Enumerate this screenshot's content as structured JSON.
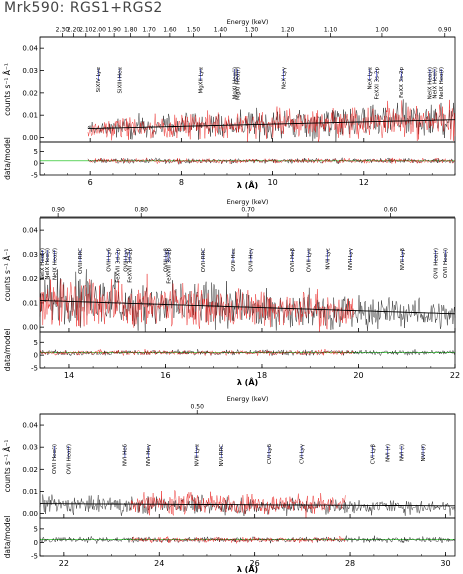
{
  "title": "Mrk590: RGS1+RGS2",
  "colors": {
    "black_series": "#000000",
    "red_series": "#e8110f",
    "model": "#000000",
    "ideal": "#00bb00",
    "lines": "#1f2bd6"
  },
  "chart_data": [
    {
      "type": "line",
      "panel": "top",
      "xlabel": "λ (Å)",
      "ylabel_upper": "counts s⁻¹ Å⁻¹",
      "ylabel_lower": "data/model",
      "top_axis_label": "Energy (keV)",
      "xlim": [
        4.9,
        14.0
      ],
      "ylim_upper": [
        -0.002,
        0.045
      ],
      "ylim_lower": [
        -5,
        9
      ],
      "x_ticks": [
        6,
        8,
        10,
        12
      ],
      "y_ticks_upper": [
        0.0,
        0.01,
        0.02,
        0.03,
        0.04
      ],
      "y_ticks_lower": [
        -5,
        0,
        5
      ],
      "energy_ticks": [
        "2.30",
        "2.20",
        "2.10",
        "2.00",
        "1.90",
        "1.80",
        "1.70",
        "1.60",
        "1.50",
        "1.40",
        "1.30",
        "1.20",
        "1.10",
        "1.00",
        "0.90"
      ],
      "series": [
        {
          "name": "RGS1",
          "color": "#000000",
          "x_start": 5.95,
          "x_end": 14.0,
          "level": [
            0.004,
            0.008
          ]
        },
        {
          "name": "RGS2",
          "color": "#e8110f",
          "x_start": 5.95,
          "x_end": 14.0,
          "level": [
            0.004,
            0.008
          ]
        }
      ],
      "line_labels": [
        {
          "x": 6.18,
          "text": "SiXIV Lyα"
        },
        {
          "x": 6.65,
          "text": "SiXIII Heα"
        },
        {
          "x": 8.42,
          "text": "MgXII Lyα"
        },
        {
          "x": 9.17,
          "text": "MgXI Heα(i)"
        },
        {
          "x": 9.23,
          "text": "MgXI Heα(r)"
        },
        {
          "x": 10.24,
          "text": "NeX Lyγ"
        },
        {
          "x": 12.13,
          "text": "NeX Lyα"
        },
        {
          "x": 12.28,
          "text": "FeXXI 3s-2p"
        },
        {
          "x": 12.82,
          "text": "FeXX 3s-2p"
        },
        {
          "x": 13.45,
          "text": "NeIX Heα(r)"
        },
        {
          "x": 13.55,
          "text": "NeIX Heα(i)"
        },
        {
          "x": 13.7,
          "text": "NeIX Heα(f)"
        }
      ]
    },
    {
      "type": "line",
      "panel": "middle",
      "xlabel": "λ (Å)",
      "ylabel_upper": "counts s⁻¹ Å⁻¹",
      "ylabel_lower": "data/model",
      "top_axis_label": "Energy (keV)",
      "xlim": [
        13.4,
        22.0
      ],
      "ylim_upper": [
        -0.002,
        0.045
      ],
      "ylim_lower": [
        -5,
        9
      ],
      "x_ticks": [
        14,
        16,
        18,
        20,
        22
      ],
      "y_ticks_upper": [
        0.0,
        0.01,
        0.02,
        0.03,
        0.04
      ],
      "y_ticks_lower": [
        -5,
        0,
        5
      ],
      "energy_ticks": [
        "0.90",
        "0.80",
        "0.70",
        "0.60"
      ],
      "series": [
        {
          "name": "RGS1",
          "color": "#000000",
          "x_start": 13.4,
          "x_end": 22.0,
          "level": [
            0.011,
            0.005
          ]
        },
        {
          "name": "RGS2",
          "color": "#e8110f",
          "x_start": 13.4,
          "x_end": 19.9,
          "level": [
            0.011,
            0.006
          ]
        }
      ],
      "line_labels": [
        {
          "x": 13.45,
          "text": "NeIX Heα(r)"
        },
        {
          "x": 13.55,
          "text": "NeIX Heα(i)"
        },
        {
          "x": 13.7,
          "text": "NeIX Heα(f)"
        },
        {
          "x": 14.23,
          "text": "OVIII RRC"
        },
        {
          "x": 14.82,
          "text": "OVIII Lyδ"
        },
        {
          "x": 15.01,
          "text": "FeXVII 3d-2p"
        },
        {
          "x": 15.18,
          "text": "OVIII Lyγ"
        },
        {
          "x": 15.26,
          "text": "FeXVII 3d-2p"
        },
        {
          "x": 16.01,
          "text": "OVIII Lyβ"
        },
        {
          "x": 16.07,
          "text": "FeXVIII 3s-2p"
        },
        {
          "x": 16.78,
          "text": "OVII RRC"
        },
        {
          "x": 17.4,
          "text": "OVII Heε"
        },
        {
          "x": 17.77,
          "text": "OVII Heγ"
        },
        {
          "x": 18.63,
          "text": "OVII Heβ"
        },
        {
          "x": 18.97,
          "text": "OVIII Lyα"
        },
        {
          "x": 19.36,
          "text": "NVII Lyε"
        },
        {
          "x": 19.83,
          "text": "NVII Lyγ"
        },
        {
          "x": 20.91,
          "text": "NVII Lyβ"
        },
        {
          "x": 21.6,
          "text": "OVII Heα(r)"
        },
        {
          "x": 21.8,
          "text": "OVII Heα(i)"
        }
      ]
    },
    {
      "type": "line",
      "panel": "bottom",
      "xlabel": "λ (Å)",
      "ylabel_upper": "counts s⁻¹ Å⁻¹",
      "ylabel_lower": "data/model",
      "top_axis_label": "Energy (keV)",
      "xlim": [
        21.5,
        30.2
      ],
      "ylim_upper": [
        -0.002,
        0.045
      ],
      "ylim_lower": [
        -5,
        9
      ],
      "x_ticks": [
        22,
        24,
        26,
        28,
        30
      ],
      "y_ticks_upper": [
        0.0,
        0.01,
        0.02,
        0.03,
        0.04
      ],
      "y_ticks_lower": [
        -5,
        0,
        5
      ],
      "energy_ticks": [
        "0.50"
      ],
      "series": [
        {
          "name": "RGS1",
          "color": "#000000",
          "x_start": 21.5,
          "x_end": 30.2,
          "level": [
            0.004,
            0.003
          ]
        },
        {
          "name": "RGS2",
          "color": "#e8110f",
          "x_start": 23.4,
          "x_end": 27.9,
          "level": [
            0.005,
            0.004
          ]
        }
      ],
      "line_labels": [
        {
          "x": 21.8,
          "text": "OVII Heα(i)"
        },
        {
          "x": 22.1,
          "text": "OVII Heα(f)"
        },
        {
          "x": 23.28,
          "text": "NVI Heδ"
        },
        {
          "x": 23.77,
          "text": "NVI Heγ"
        },
        {
          "x": 24.78,
          "text": "NVII Lyα"
        },
        {
          "x": 25.3,
          "text": "NVI RRC"
        },
        {
          "x": 26.3,
          "text": "CVI Lyδ"
        },
        {
          "x": 26.99,
          "text": "CVI Lyγ"
        },
        {
          "x": 28.47,
          "text": "CVI Lyβ"
        },
        {
          "x": 28.79,
          "text": "NVI (r)"
        },
        {
          "x": 29.08,
          "text": "NVI (i)"
        },
        {
          "x": 29.53,
          "text": "NVI (f)"
        }
      ]
    }
  ]
}
